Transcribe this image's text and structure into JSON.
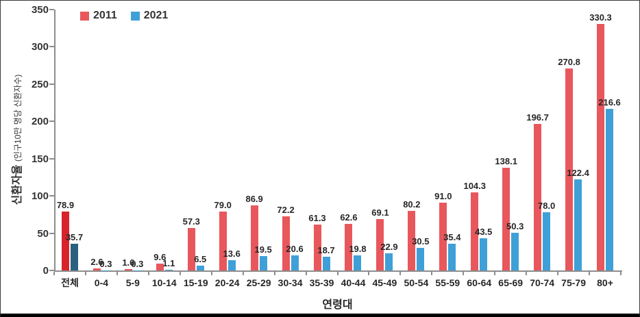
{
  "chart_data": {
    "type": "bar",
    "title": "",
    "xlabel": "연령대",
    "ylabel_main": "신환자율",
    "ylabel_sub": "(인구10만 명당 신환자수)",
    "ylim": [
      0,
      350
    ],
    "yticks": [
      0,
      50,
      100,
      150,
      200,
      250,
      300,
      350
    ],
    "grid": false,
    "legend_position": "top-left",
    "value_label_decimals": 1,
    "categories": [
      "전체",
      "0-4",
      "5-9",
      "10-14",
      "15-19",
      "20-24",
      "25-29",
      "30-34",
      "35-39",
      "40-44",
      "45-49",
      "50-54",
      "55-59",
      "60-64",
      "65-69",
      "70-74",
      "75-79",
      "80+"
    ],
    "highlight_category": "전체",
    "series": [
      {
        "name": "2011",
        "color": "#e8575c",
        "highlight_color": "#d8232a",
        "values": [
          78.9,
          2.6,
          1.6,
          9.6,
          57.3,
          79.0,
          86.9,
          72.2,
          61.3,
          62.6,
          69.1,
          80.2,
          91.0,
          104.3,
          138.1,
          196.7,
          270.8,
          330.3
        ]
      },
      {
        "name": "2021",
        "color": "#3fa0d8",
        "highlight_color": "#2a5f7e",
        "values": [
          35.7,
          0.3,
          0.3,
          1.1,
          6.5,
          13.6,
          19.5,
          20.6,
          18.7,
          19.8,
          22.9,
          30.5,
          35.4,
          43.5,
          50.3,
          78.0,
          122.4,
          216.6
        ]
      }
    ],
    "axis_color": "#8c8c8c",
    "text_color": "#262626"
  }
}
